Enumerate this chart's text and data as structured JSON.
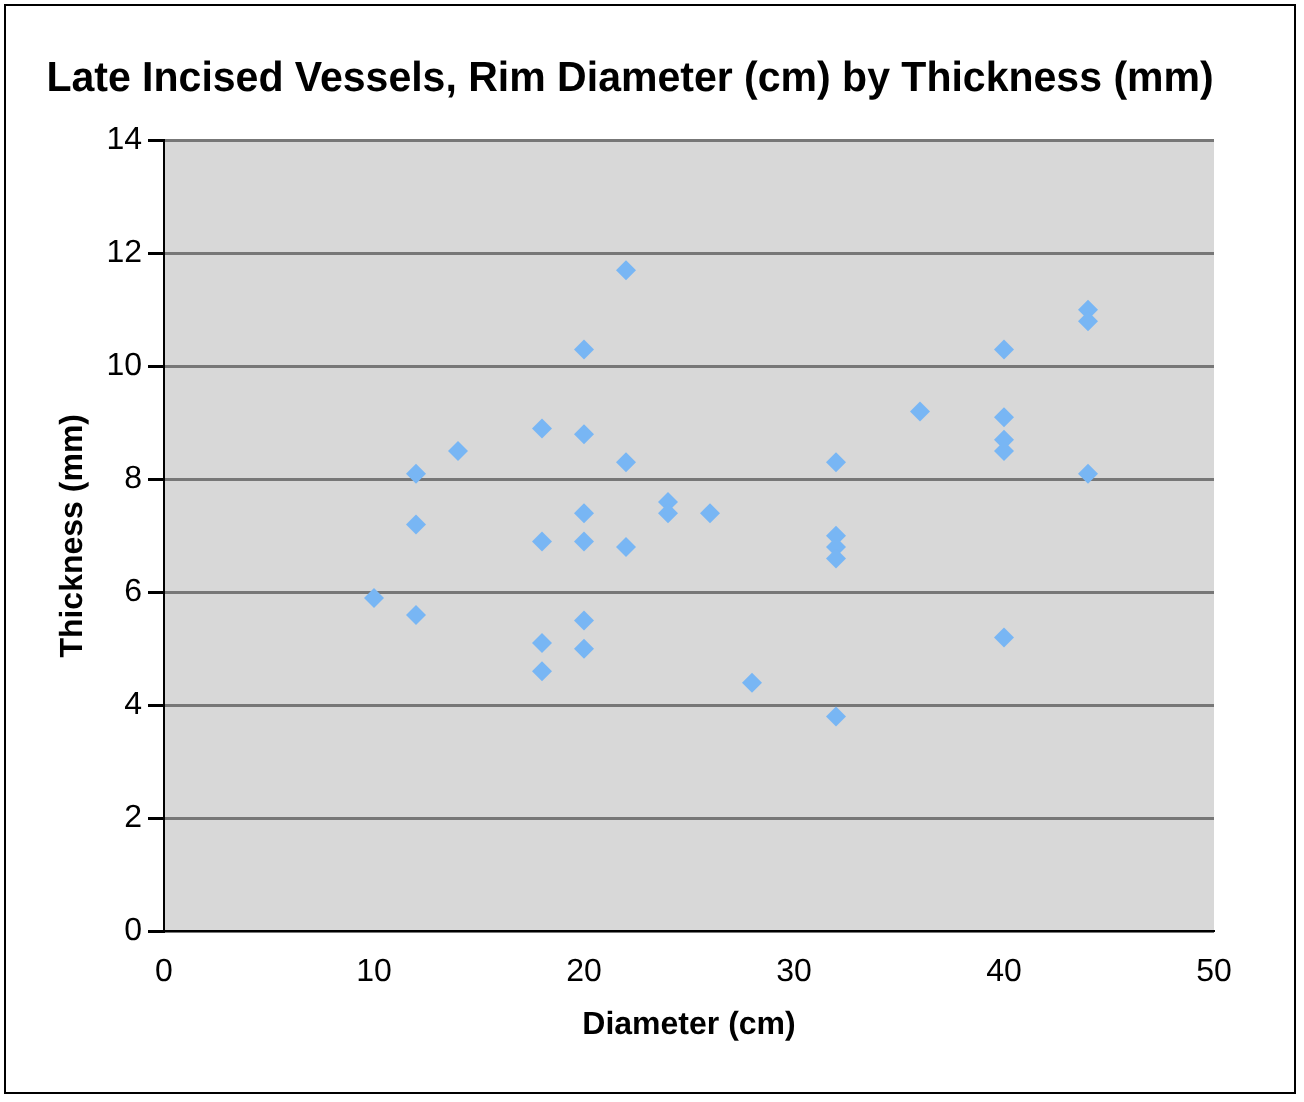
{
  "chart_data": {
    "type": "scatter",
    "title": "Late Incised Vessels, Rim Diameter (cm) by Thickness (mm)",
    "xlabel": "Diameter (cm)",
    "ylabel": "Thickness (mm)",
    "x": [
      10,
      12,
      12,
      12,
      14,
      18,
      18,
      18,
      18,
      20,
      20,
      20,
      20,
      20,
      20,
      22,
      22,
      22,
      24,
      24,
      26,
      28,
      32,
      32,
      32,
      32,
      32,
      36,
      40,
      40,
      40,
      40,
      40,
      44,
      44,
      44
    ],
    "values": [
      5.9,
      8.1,
      7.2,
      5.6,
      8.5,
      8.9,
      6.9,
      5.1,
      4.6,
      10.3,
      8.8,
      7.4,
      6.9,
      5.5,
      5.0,
      11.7,
      8.3,
      6.8,
      7.6,
      7.4,
      7.4,
      4.4,
      8.3,
      7.0,
      6.8,
      6.6,
      3.8,
      9.2,
      10.3,
      9.1,
      8.7,
      8.5,
      5.2,
      11.0,
      10.8,
      8.1
    ],
    "color": "#78b6f4",
    "marker": "diamond",
    "grid": "y",
    "legend": false,
    "xlim": [
      0,
      50
    ],
    "xticks": [
      0,
      10,
      20,
      30,
      40,
      50
    ],
    "ylim": [
      0,
      14
    ],
    "yticks": [
      0,
      2,
      4,
      6,
      8,
      10,
      12,
      14
    ]
  }
}
